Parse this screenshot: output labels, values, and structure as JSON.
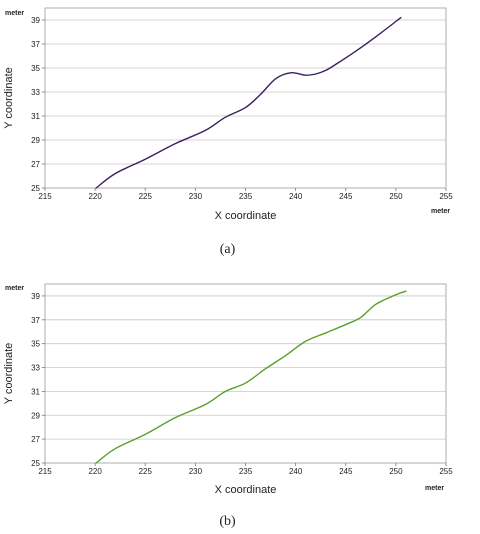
{
  "chart_data": [
    {
      "type": "line",
      "caption": "(a)",
      "xlabel": "X coordinate",
      "ylabel": "Y coordinate",
      "x_unit": "meter",
      "y_unit": "meter",
      "xlim": [
        215,
        255
      ],
      "ylim": [
        25,
        40
      ],
      "x_ticks": [
        215,
        220,
        225,
        230,
        235,
        240,
        245,
        250,
        255
      ],
      "y_ticks": [
        25,
        27,
        29,
        31,
        33,
        35,
        37,
        39
      ],
      "grid": "horizontal",
      "legend": "none",
      "color": "#3b1f5e",
      "series": [
        {
          "x": [
            220.1,
            222,
            225,
            228,
            231,
            233,
            235,
            236.5,
            238,
            239.5,
            241,
            242,
            243,
            244,
            246,
            248,
            250.5
          ],
          "y": [
            25.0,
            26.2,
            27.4,
            28.7,
            29.8,
            30.9,
            31.7,
            32.8,
            34.1,
            34.6,
            34.4,
            34.5,
            34.8,
            35.3,
            36.4,
            37.6,
            39.2
          ]
        }
      ]
    },
    {
      "type": "line",
      "caption": "(b)",
      "xlabel": "X coordinate",
      "ylabel": "Y coordinate",
      "x_unit": "meter",
      "y_unit": "meter",
      "xlim": [
        215,
        255
      ],
      "ylim": [
        25,
        40
      ],
      "x_ticks": [
        215,
        220,
        225,
        230,
        235,
        240,
        245,
        250,
        255
      ],
      "y_ticks": [
        25,
        27,
        29,
        31,
        33,
        35,
        37,
        39
      ],
      "grid": "horizontal",
      "legend": "none",
      "color": "#5a9e2c",
      "series": [
        {
          "x": [
            220.1,
            222,
            225,
            228,
            231,
            233,
            235,
            237,
            239,
            241,
            243,
            245,
            246.5,
            248,
            250,
            251
          ],
          "y": [
            25.0,
            26.2,
            27.4,
            28.8,
            29.9,
            31.0,
            31.7,
            32.9,
            34.0,
            35.2,
            35.9,
            36.6,
            37.2,
            38.3,
            39.1,
            39.4
          ]
        }
      ]
    }
  ]
}
